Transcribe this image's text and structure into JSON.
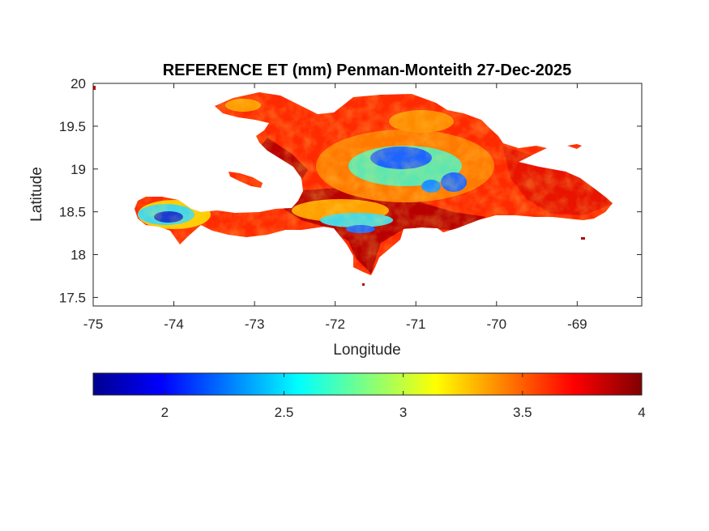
{
  "map": {
    "title": "REFERENCE ET (mm) Penman-Monteith 27-Dec-2025",
    "xlabel": "Longitude",
    "ylabel": "Latitude",
    "xticks": [
      -75,
      -74,
      -73,
      -72,
      -71,
      -70,
      -69
    ],
    "yticks": [
      17.5,
      18,
      18.5,
      19,
      19.5,
      20
    ],
    "xlim": [
      -75,
      -68.2
    ],
    "ylim": [
      17.4,
      20
    ]
  },
  "colorbar": {
    "colormap": "jet",
    "range": [
      1.7,
      4
    ],
    "ticks": [
      2,
      2.5,
      3,
      3.5,
      4
    ]
  },
  "colors": {
    "land_high": "#b40000",
    "land_mid": "#ff3a00",
    "land_low": "#1e8cff"
  }
}
